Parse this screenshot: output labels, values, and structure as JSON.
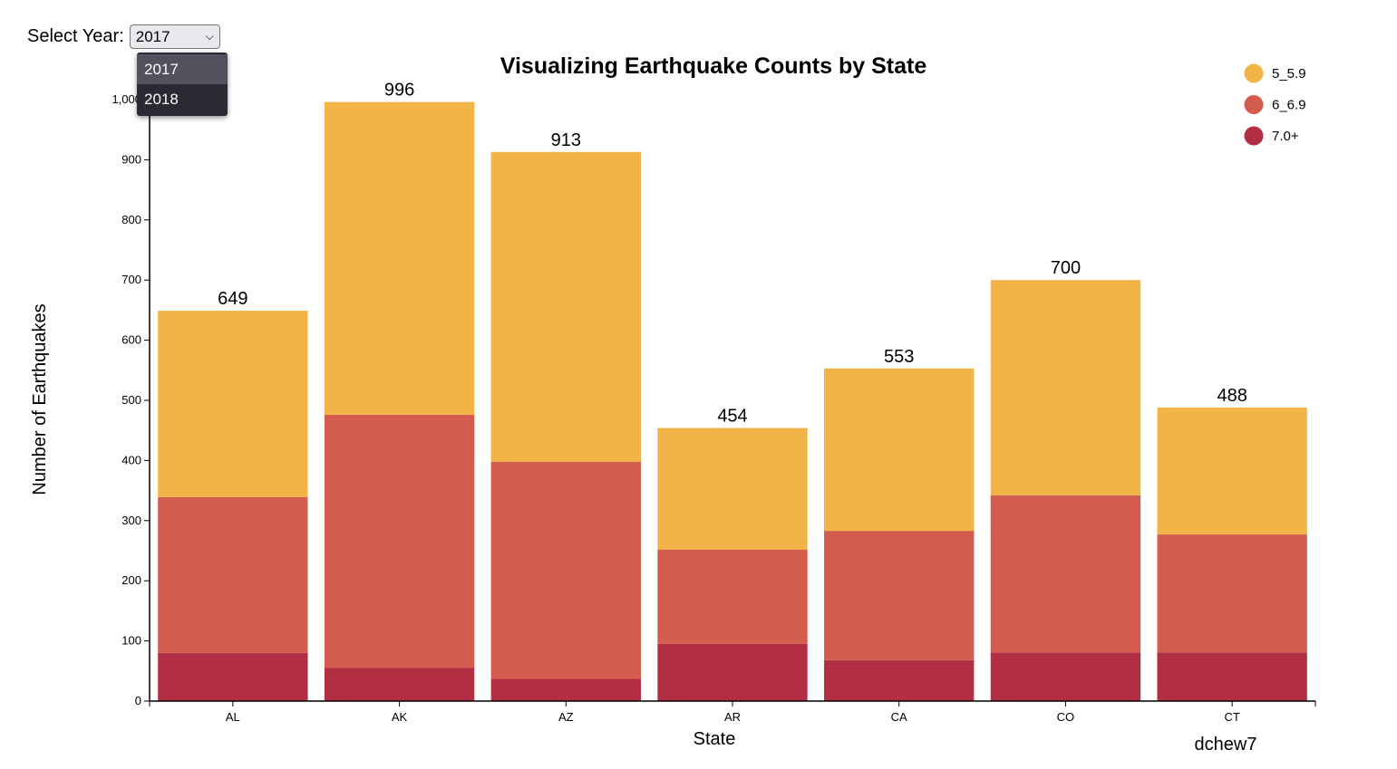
{
  "controls": {
    "year_label": "Select Year:",
    "selected_year": "2017",
    "year_options": [
      "2017",
      "2018"
    ]
  },
  "chart_data": {
    "type": "bar",
    "stacked": true,
    "title": "Visualizing Earthquake Counts by State",
    "xlabel": "State",
    "ylabel": "Number of Earthquakes",
    "ylim": [
      0,
      1000
    ],
    "yticks": [
      0,
      100,
      200,
      300,
      400,
      500,
      600,
      700,
      800,
      900,
      1000
    ],
    "ytick_labels": [
      "0",
      "100",
      "200",
      "300",
      "400",
      "500",
      "600",
      "700",
      "800",
      "900",
      "1,000"
    ],
    "grid": false,
    "legend_position": "top-right",
    "credit": "dchew7",
    "categories": [
      "AL",
      "AK",
      "AZ",
      "AR",
      "CA",
      "CO",
      "CT"
    ],
    "totals": [
      649,
      996,
      913,
      454,
      553,
      700,
      488
    ],
    "series": [
      {
        "name": "7.0+",
        "color": "#b22e42",
        "values": [
          80,
          55,
          37,
          95,
          68,
          81,
          81
        ]
      },
      {
        "name": "6_6.9",
        "color": "#d35c4f",
        "values": [
          259,
          421,
          361,
          157,
          215,
          261,
          196
        ]
      },
      {
        "name": "5_5.9",
        "color": "#f2b447",
        "values": [
          310,
          520,
          515,
          202,
          270,
          358,
          211
        ]
      }
    ]
  }
}
